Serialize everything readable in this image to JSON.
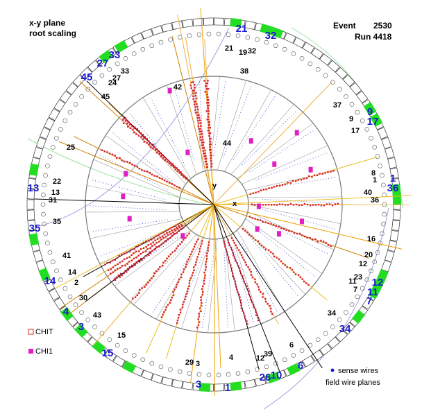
{
  "header": {
    "title": "x-y plane",
    "subtitle": "root scaling",
    "event_label": "Event",
    "event": "2530",
    "run": "Run 4418"
  },
  "legend": {
    "chit": "CHIT",
    "chi1": "CHI1",
    "sense": "sense wires",
    "field": "field wire planes"
  },
  "axes": {
    "x": "x",
    "y": "y"
  },
  "ring_labels": [
    "21",
    "32",
    "33",
    "27",
    "45",
    "9",
    "17",
    "13",
    "1",
    "36",
    "35",
    "14",
    "12",
    "11",
    "7",
    "4",
    "3",
    "34",
    "15",
    "6",
    "3",
    "1",
    "26",
    "10"
  ],
  "track_labels": [
    "21",
    "19",
    "32",
    "33",
    "27",
    "24",
    "45",
    "38",
    "42",
    "37",
    "9",
    "17",
    "25",
    "44",
    "8",
    "1",
    "40",
    "36",
    "22",
    "13",
    "31",
    "35",
    "16",
    "20",
    "12",
    "41",
    "14",
    "2",
    "23",
    "11",
    "7",
    "30",
    "43",
    "34",
    "15",
    "6",
    "39",
    "12",
    "29",
    "3",
    "4"
  ]
}
